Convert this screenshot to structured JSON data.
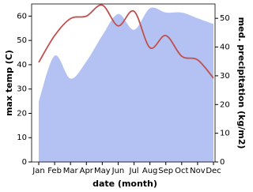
{
  "chart_data": {
    "type": "line_area",
    "x_label": "date (month)",
    "y_label": "max temp (C)",
    "y2_label": "med. precipitation (kg/m2)",
    "categories": [
      "Jan",
      "Feb",
      "Mar",
      "Apr",
      "May",
      "Jun",
      "Jul",
      "Aug",
      "Sep",
      "Oct",
      "Nov",
      "Dec"
    ],
    "series": [
      {
        "name": "max temp",
        "color": "#c0504d",
        "kind": "line",
        "values": [
          41,
          52,
          59,
          60,
          64.5,
          56,
          62,
          47,
          52,
          43.5,
          42,
          34.5
        ]
      },
      {
        "name": "precipitation",
        "color": "#b3c2f2",
        "kind": "area",
        "axis": "y2",
        "values": [
          21,
          37,
          29,
          35,
          44,
          51.5,
          46,
          53.5,
          52,
          52,
          50,
          48
        ]
      }
    ],
    "ylim": [
      0,
      65
    ],
    "yticks": [
      0,
      10,
      20,
      30,
      40,
      50,
      60
    ],
    "y2lim": [
      0,
      55
    ],
    "y2ticks": [
      0,
      10,
      20,
      30,
      40,
      50
    ]
  }
}
